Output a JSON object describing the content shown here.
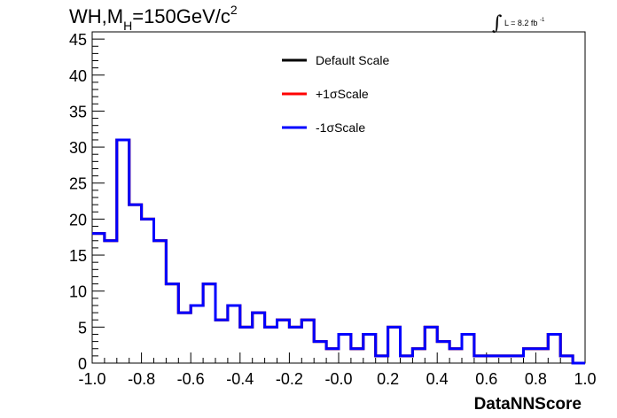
{
  "title": {
    "prefix": "WH,M",
    "sub": "H",
    "rest": "=150GeV/c",
    "sup": "2"
  },
  "lumi": {
    "symbol": "∫",
    "text": "L = 8.2 fb",
    "sup": "-1"
  },
  "chart_data": {
    "type": "line",
    "style": "step-histogram",
    "xlabel": "DataNNScore",
    "ylabel": "",
    "xlim": [
      -1.0,
      1.0
    ],
    "ylim": [
      0,
      46
    ],
    "x_ticks": [
      -1.0,
      -0.8,
      -0.6,
      -0.4,
      -0.2,
      -0.0,
      0.2,
      0.4,
      0.6,
      0.8,
      1.0
    ],
    "x_tick_labels": [
      "-1.0",
      "-0.8",
      "-0.6",
      "-0.4",
      "-0.2",
      "-0.0",
      "0.2",
      "0.4",
      "0.6",
      "0.8",
      "1.0"
    ],
    "y_ticks": [
      0,
      5,
      10,
      15,
      20,
      25,
      30,
      35,
      40,
      45
    ],
    "y_tick_labels": [
      "0",
      "5",
      "10",
      "15",
      "20",
      "25",
      "30",
      "35",
      "40",
      "45"
    ],
    "bin_edges": [
      -1.0,
      -0.95,
      -0.9,
      -0.85,
      -0.8,
      -0.75,
      -0.7,
      -0.65,
      -0.6,
      -0.55,
      -0.5,
      -0.45,
      -0.4,
      -0.35,
      -0.3,
      -0.25,
      -0.2,
      -0.15,
      -0.1,
      -0.05,
      0.0,
      0.05,
      0.1,
      0.15,
      0.2,
      0.25,
      0.3,
      0.35,
      0.4,
      0.45,
      0.5,
      0.55,
      0.6,
      0.65,
      0.7,
      0.75,
      0.8,
      0.85,
      0.9,
      0.95,
      1.0
    ],
    "series": [
      {
        "name": "Default Scale",
        "color": "#000000",
        "values": [
          18,
          17,
          31,
          22,
          20,
          17,
          11,
          7,
          8,
          11,
          6,
          8,
          5,
          7,
          5,
          6,
          5,
          6,
          3,
          2,
          4,
          2,
          4,
          1,
          5,
          1,
          2,
          5,
          3,
          2,
          4,
          1,
          1,
          1,
          1,
          2,
          2,
          4,
          1,
          0
        ]
      },
      {
        "name": "+1σScale",
        "color": "#ff0000",
        "values": [
          18,
          17,
          31,
          22,
          20,
          17,
          11,
          7,
          8,
          11,
          6,
          8,
          5,
          7,
          5,
          6,
          5,
          6,
          3,
          2,
          4,
          2,
          4,
          1,
          5,
          1,
          2,
          5,
          3,
          2,
          4,
          1,
          1,
          1,
          1,
          2,
          2,
          4,
          1,
          0
        ]
      },
      {
        "name": "-1σScale",
        "color": "#0000ff",
        "values": [
          18,
          17,
          31,
          22,
          20,
          17,
          11,
          7,
          8,
          11,
          6,
          8,
          5,
          7,
          5,
          6,
          5,
          6,
          3,
          2,
          4,
          2,
          4,
          1,
          5,
          1,
          2,
          5,
          3,
          2,
          4,
          1,
          1,
          1,
          1,
          2,
          2,
          4,
          1,
          0
        ]
      }
    ],
    "legend_position": "top-center",
    "grid": false
  }
}
